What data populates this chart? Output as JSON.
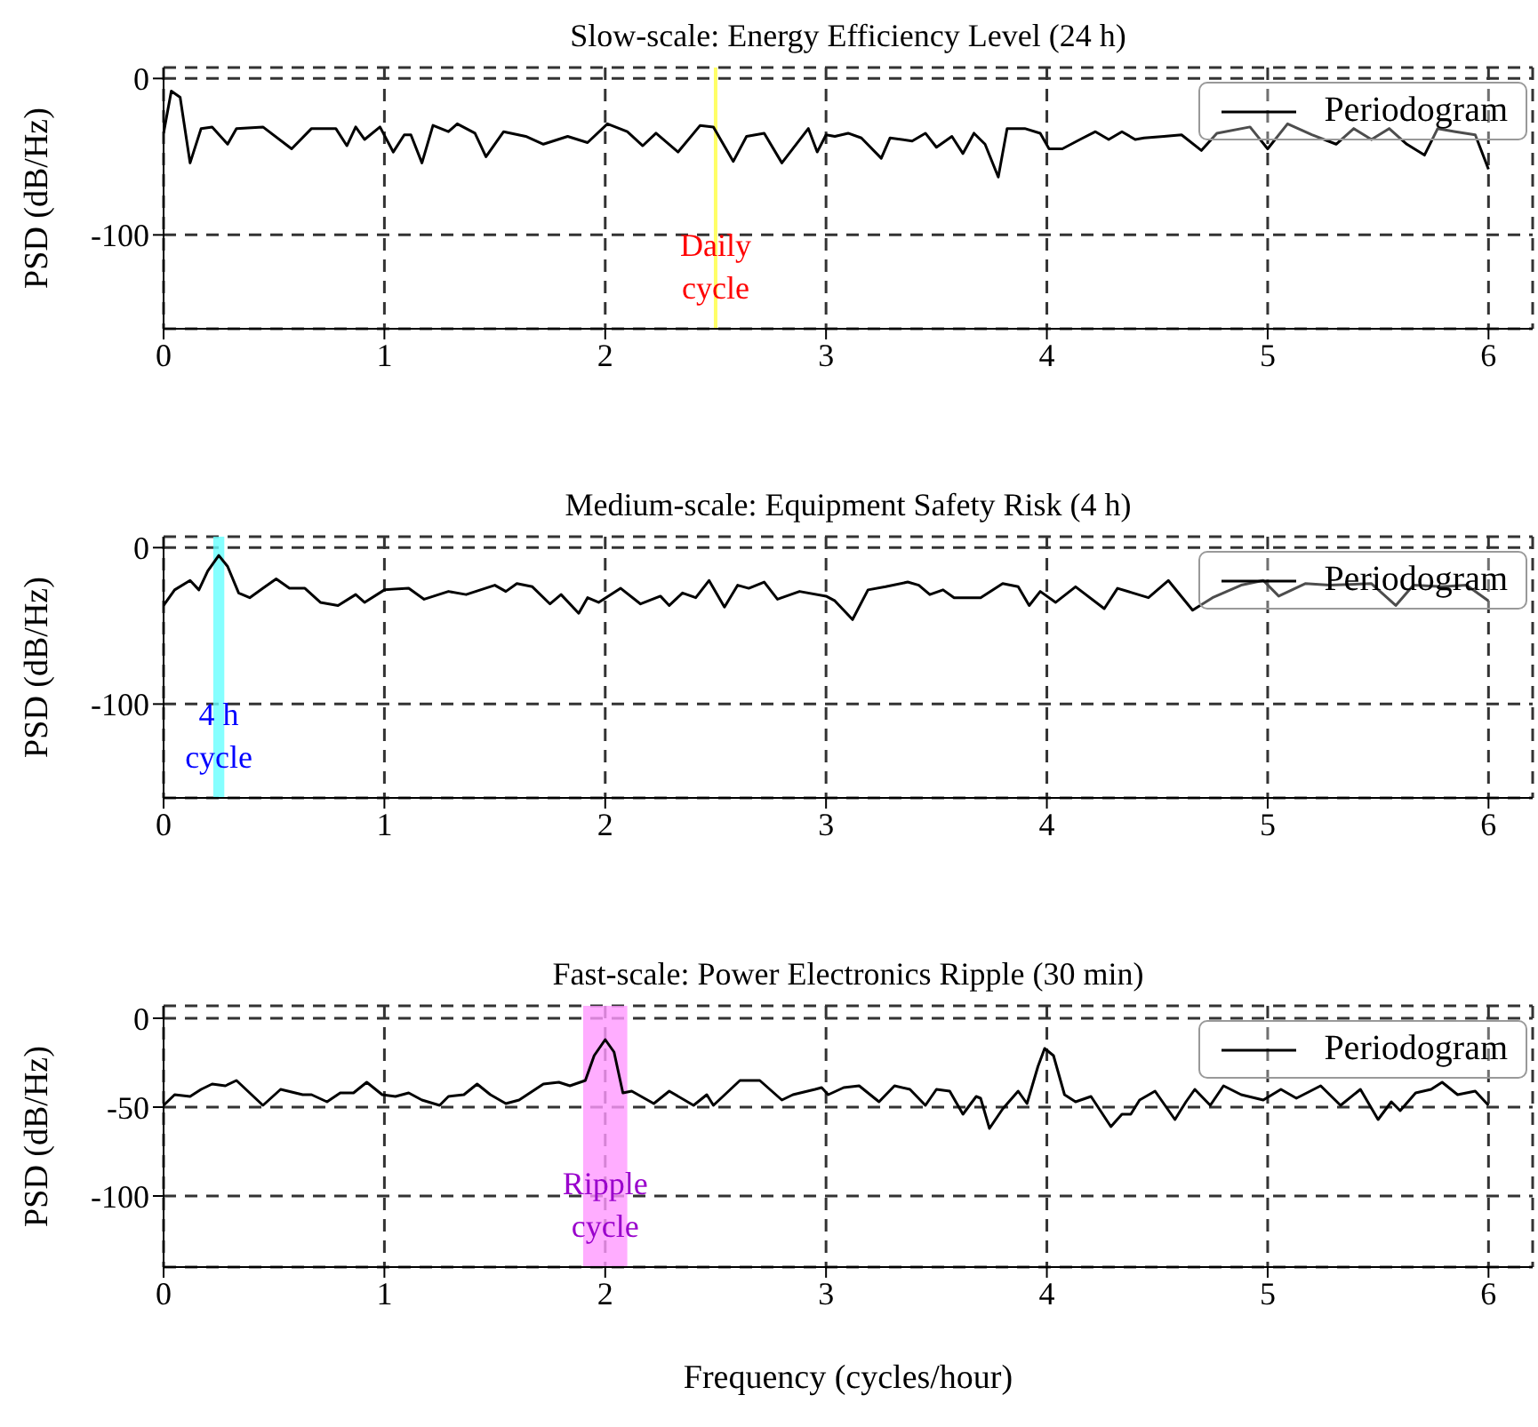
{
  "chart_data": [
    {
      "type": "line",
      "title": "Slow-scale: Energy Efficiency Level (24 h)",
      "ylabel": "PSD (dB/Hz)",
      "xlim": [
        0,
        6.2
      ],
      "xticks": [
        0,
        1,
        2,
        3,
        4,
        5,
        6
      ],
      "ylim": [
        -160,
        7
      ],
      "yticks": [
        0,
        -100
      ],
      "grid": true,
      "legend": "top right",
      "line_style": "solid",
      "series": [
        {
          "name": "Periodogram",
          "color": "#000000",
          "x": [
            0,
            0.035,
            0.075,
            0.12,
            0.17,
            0.22,
            0.29,
            0.33,
            0.45,
            0.58,
            0.67,
            0.78,
            0.83,
            0.87,
            0.91,
            0.98,
            1.04,
            1.09,
            1.12,
            1.17,
            1.22,
            1.29,
            1.33,
            1.41,
            1.46,
            1.54,
            1.64,
            1.72,
            1.83,
            1.92,
            2.01,
            2.1,
            2.17,
            2.23,
            2.33,
            2.43,
            2.49,
            2.58,
            2.64,
            2.72,
            2.8,
            2.92,
            2.96,
            3.0,
            3.04,
            3.1,
            3.16,
            3.25,
            3.29,
            3.39,
            3.45,
            3.5,
            3.57,
            3.62,
            3.67,
            3.72,
            3.78,
            3.82,
            3.86,
            3.9,
            3.97,
            4.01,
            4.07,
            4.15,
            4.22,
            4.28,
            4.34,
            4.4,
            4.44,
            4.53,
            4.61,
            4.7,
            4.77,
            4.92,
            5.0,
            5.09,
            5.2,
            5.31,
            5.39,
            5.47,
            5.55,
            5.63,
            5.71,
            5.77,
            5.85,
            5.94,
            6.0
          ],
          "values": [
            -35,
            -8,
            -12,
            -54,
            -32,
            -31,
            -42,
            -32,
            -31,
            -45,
            -32,
            -32,
            -43,
            -31,
            -39,
            -31,
            -47,
            -36,
            -36,
            -54,
            -30,
            -34,
            -29,
            -35,
            -50,
            -34,
            -37,
            -42,
            -37,
            -41,
            -29,
            -34,
            -43,
            -35,
            -47,
            -30,
            -31,
            -53,
            -37,
            -35,
            -54,
            -32,
            -47,
            -36,
            -37,
            -35,
            -38,
            -51,
            -38,
            -40,
            -35,
            -44,
            -37,
            -48,
            -35,
            -42,
            -63,
            -32,
            -32,
            -32,
            -35,
            -45,
            -45,
            -39,
            -34,
            -39,
            -34,
            -39,
            -38,
            -37,
            -36,
            -46,
            -35,
            -31,
            -45,
            -29,
            -36,
            -42,
            -32,
            -39,
            -32,
            -42,
            -49,
            -32,
            -34,
            -36,
            -58
          ]
        }
      ],
      "ref_lines": [
        {
          "axis": "x",
          "value": 2.5,
          "label": "Daily cycle",
          "color": "#ffff66"
        }
      ]
    },
    {
      "type": "line",
      "title": "Medium-scale: Equipment Safety Risk (4 h)",
      "ylabel": "PSD (dB/Hz)",
      "xlim": [
        0,
        6.2
      ],
      "xticks": [
        0,
        1,
        2,
        3,
        4,
        5,
        6
      ],
      "ylim": [
        -160,
        7
      ],
      "yticks": [
        0,
        -100
      ],
      "grid": true,
      "legend": "top right",
      "line_style": "solid",
      "series": [
        {
          "name": "Periodogram",
          "color": "#000000",
          "x": [
            0,
            0.05,
            0.12,
            0.16,
            0.2,
            0.25,
            0.29,
            0.34,
            0.39,
            0.45,
            0.51,
            0.57,
            0.64,
            0.71,
            0.79,
            0.87,
            0.91,
            1.0,
            1.11,
            1.18,
            1.29,
            1.37,
            1.5,
            1.55,
            1.6,
            1.67,
            1.75,
            1.8,
            1.88,
            1.92,
            1.97,
            2.07,
            2.16,
            2.25,
            2.29,
            2.35,
            2.41,
            2.47,
            2.54,
            2.6,
            2.65,
            2.72,
            2.78,
            2.88,
            3.0,
            3.04,
            3.12,
            3.19,
            3.27,
            3.37,
            3.42,
            3.47,
            3.53,
            3.58,
            3.7,
            3.8,
            3.87,
            3.92,
            3.97,
            4.04,
            4.13,
            4.26,
            4.32,
            4.39,
            4.46,
            4.55,
            4.66,
            4.75,
            4.88,
            4.98,
            5.05,
            5.17,
            5.28,
            5.47,
            5.58,
            5.66,
            5.79,
            5.9,
            6.0
          ],
          "values": [
            -37,
            -27,
            -21,
            -27,
            -15,
            -5,
            -12,
            -29,
            -32,
            -26,
            -20,
            -26,
            -26,
            -35,
            -37,
            -30,
            -35,
            -27,
            -26,
            -33,
            -28,
            -30,
            -24,
            -28,
            -23,
            -25,
            -36,
            -30,
            -42,
            -32,
            -35,
            -26,
            -36,
            -31,
            -37,
            -29,
            -32,
            -21,
            -38,
            -24,
            -26,
            -22,
            -33,
            -28,
            -31,
            -34,
            -46,
            -27,
            -25,
            -22,
            -24,
            -30,
            -27,
            -32,
            -32,
            -23,
            -25,
            -37,
            -28,
            -35,
            -25,
            -39,
            -26,
            -29,
            -32,
            -21,
            -40,
            -32,
            -24,
            -21,
            -31,
            -23,
            -24,
            -23,
            -37,
            -24,
            -25,
            -24,
            -34
          ]
        }
      ],
      "bands": [
        {
          "axis": "x",
          "from": 0.225,
          "to": 0.275,
          "label": "4 h cycle",
          "color": "#66ffff"
        }
      ]
    },
    {
      "type": "line",
      "title": "Fast-scale: Power Electronics Ripple (30 min)",
      "ylabel": "PSD (dB/Hz)",
      "xlabel": "Frequency (cycles/hour)",
      "xlim": [
        0,
        6.2
      ],
      "xticks": [
        0,
        1,
        2,
        3,
        4,
        5,
        6
      ],
      "ylim": [
        -140,
        7
      ],
      "yticks": [
        0,
        -50,
        -100
      ],
      "grid": true,
      "legend": "top right",
      "line_style": "solid",
      "series": [
        {
          "name": "Periodogram",
          "color": "#000000",
          "x": [
            0,
            0.05,
            0.12,
            0.17,
            0.22,
            0.28,
            0.33,
            0.45,
            0.53,
            0.63,
            0.67,
            0.74,
            0.8,
            0.86,
            0.92,
            0.99,
            1.05,
            1.11,
            1.17,
            1.25,
            1.29,
            1.36,
            1.42,
            1.48,
            1.55,
            1.61,
            1.72,
            1.79,
            1.84,
            1.91,
            1.95,
            2.0,
            2.04,
            2.08,
            2.12,
            2.22,
            2.29,
            2.4,
            2.46,
            2.49,
            2.61,
            2.7,
            2.8,
            2.85,
            2.95,
            2.98,
            3.01,
            3.08,
            3.15,
            3.24,
            3.31,
            3.38,
            3.45,
            3.5,
            3.56,
            3.62,
            3.68,
            3.7,
            3.74,
            3.8,
            3.87,
            3.91,
            3.96,
            3.99,
            4.03,
            4.08,
            4.13,
            4.2,
            4.29,
            4.34,
            4.38,
            4.42,
            4.49,
            4.58,
            4.63,
            4.67,
            4.74,
            4.8,
            4.88,
            4.98,
            5.06,
            5.13,
            5.24,
            5.33,
            5.42,
            5.5,
            5.56,
            5.6,
            5.67,
            5.74,
            5.79,
            5.86,
            5.94,
            6.0
          ],
          "values": [
            -49,
            -43,
            -44,
            -40,
            -37,
            -38,
            -35,
            -49,
            -40,
            -43,
            -43,
            -47,
            -42,
            -42,
            -36,
            -43,
            -44,
            -42,
            -46,
            -49,
            -44,
            -43,
            -37,
            -43,
            -48,
            -46,
            -37,
            -36,
            -38,
            -35,
            -21,
            -12,
            -19,
            -42,
            -41,
            -48,
            -41,
            -49,
            -43,
            -49,
            -35,
            -35,
            -46,
            -43,
            -40,
            -39,
            -43,
            -39,
            -38,
            -47,
            -38,
            -40,
            -49,
            -40,
            -41,
            -54,
            -44,
            -45,
            -62,
            -51,
            -41,
            -48,
            -27,
            -17,
            -21,
            -43,
            -47,
            -44,
            -61,
            -54,
            -54,
            -46,
            -41,
            -57,
            -47,
            -40,
            -49,
            -38,
            -43,
            -46,
            -40,
            -45,
            -38,
            -49,
            -40,
            -57,
            -47,
            -52,
            -42,
            -40,
            -36,
            -43,
            -41,
            -49
          ]
        }
      ],
      "bands": [
        {
          "axis": "x",
          "from": 1.9,
          "to": 2.1,
          "label": "Ripple cycle",
          "color": "#ff99ff"
        }
      ]
    }
  ]
}
